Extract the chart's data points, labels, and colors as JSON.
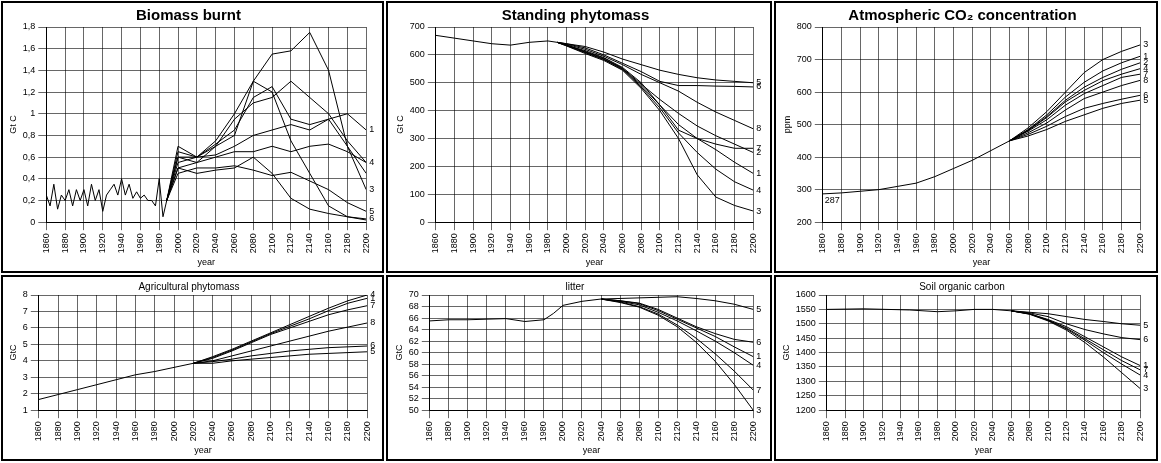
{
  "chart_data": [
    {
      "type": "line",
      "title": "Biomass burnt",
      "xlabel": "year",
      "ylabel": "Gt C",
      "xlim": [
        1860,
        2200
      ],
      "xticks": [
        1860,
        1880,
        1900,
        1920,
        1940,
        1960,
        1980,
        2000,
        2020,
        2040,
        2060,
        2080,
        2100,
        2120,
        2140,
        2160,
        2180,
        2200
      ],
      "ylim": [
        0,
        1.8
      ],
      "yticks": [
        0,
        {
          "value": 0.2,
          "label": "0,2"
        },
        {
          "value": 0.4,
          "label": "0,4"
        },
        {
          "value": 0.6,
          "label": "0,6"
        },
        {
          "value": 0.8,
          "label": "0,8"
        },
        1,
        {
          "value": 1.2,
          "label": "1,2"
        },
        {
          "value": 1.4,
          "label": "1,4"
        },
        {
          "value": 1.6,
          "label": "1,6"
        },
        {
          "value": 1.8,
          "label": "1,8"
        }
      ],
      "grid": true,
      "series": [
        {
          "name": "3",
          "color": "#000000",
          "x": [
            1860,
            1864,
            1868,
            1872,
            1876,
            1880,
            1884,
            1888,
            1892,
            1896,
            1900,
            1904,
            1908,
            1912,
            1916,
            1920,
            1924,
            1928,
            1932,
            1936,
            1940,
            1944,
            1948,
            1952,
            1956,
            1960,
            1964,
            1968,
            1972,
            1976,
            1980,
            1984,
            1988,
            2000,
            2020,
            2040,
            2060,
            2080,
            2100,
            2120,
            2140,
            2160,
            2180,
            2200
          ],
          "values": [
            0.25,
            0.15,
            0.35,
            0.12,
            0.25,
            0.2,
            0.3,
            0.15,
            0.3,
            0.2,
            0.3,
            0.15,
            0.35,
            0.2,
            0.3,
            0.1,
            0.25,
            0.3,
            0.35,
            0.25,
            0.4,
            0.25,
            0.35,
            0.22,
            0.28,
            0.22,
            0.25,
            0.2,
            0.2,
            0.15,
            0.4,
            0.05,
            0.2,
            0.65,
            0.6,
            0.75,
            1.0,
            1.3,
            1.55,
            1.58,
            1.75,
            1.4,
            0.7,
            0.3
          ]
        },
        {
          "name": "4",
          "color": "#000000",
          "x": [
            1988,
            2000,
            2020,
            2040,
            2060,
            2080,
            2100,
            2120,
            2140,
            2160,
            2180,
            2200
          ],
          "values": [
            0.2,
            0.6,
            0.6,
            0.7,
            0.95,
            1.1,
            1.15,
            1.3,
            1.15,
            1.0,
            0.75,
            0.55
          ]
        },
        {
          "name": "1",
          "color": "#000000",
          "x": [
            1988,
            2000,
            2020,
            2040,
            2060,
            2080,
            2100,
            2120,
            2140,
            2160,
            2180,
            2200
          ],
          "values": [
            0.2,
            0.55,
            0.6,
            0.72,
            0.85,
            1.15,
            1.25,
            0.95,
            0.9,
            0.95,
            1.0,
            0.85
          ]
        },
        {
          "color": "#000000",
          "x": [
            1988,
            2000,
            2020,
            2040,
            2060,
            2080,
            2100,
            2120,
            2140,
            2160,
            2180,
            2200
          ],
          "values": [
            0.2,
            0.6,
            0.55,
            0.7,
            0.8,
            1.3,
            1.2,
            0.75,
            0.45,
            0.15,
            0.05,
            0.02
          ]
        },
        {
          "color": "#000000",
          "x": [
            1988,
            2000,
            2020,
            2040,
            2060,
            2080,
            2100,
            2120,
            2140,
            2160,
            2180,
            2200
          ],
          "values": [
            0.2,
            0.7,
            0.6,
            0.62,
            0.7,
            0.8,
            0.85,
            0.9,
            0.85,
            0.95,
            0.7,
            0.45
          ]
        },
        {
          "color": "#000000",
          "x": [
            1988,
            2000,
            2020,
            2040,
            2060,
            2080,
            2100,
            2120,
            2140,
            2160,
            2180,
            2200
          ],
          "values": [
            0.2,
            0.5,
            0.55,
            0.6,
            0.65,
            0.65,
            0.7,
            0.65,
            0.7,
            0.72,
            0.65,
            0.55
          ]
        },
        {
          "name": "5",
          "color": "#000000",
          "x": [
            1988,
            2000,
            2020,
            2040,
            2060,
            2080,
            2100,
            2120,
            2140,
            2160,
            2180,
            2200
          ],
          "values": [
            0.2,
            0.45,
            0.5,
            0.5,
            0.52,
            0.48,
            0.43,
            0.46,
            0.38,
            0.3,
            0.18,
            0.1
          ]
        },
        {
          "name": "6",
          "color": "#000000",
          "x": [
            1988,
            2000,
            2020,
            2040,
            2060,
            2080,
            2100,
            2120,
            2140,
            2160,
            2180,
            2200
          ],
          "values": [
            0.2,
            0.5,
            0.45,
            0.48,
            0.5,
            0.6,
            0.45,
            0.22,
            0.12,
            0.08,
            0.05,
            0.03
          ]
        }
      ]
    },
    {
      "type": "line",
      "title": "Standing phytomass",
      "xlabel": "year",
      "ylabel": "Gt C",
      "xlim": [
        1860,
        2200
      ],
      "xticks": [
        1860,
        1880,
        1900,
        1920,
        1940,
        1960,
        1980,
        2000,
        2020,
        2040,
        2060,
        2080,
        2100,
        2120,
        2140,
        2160,
        2180,
        2200
      ],
      "ylim": [
        0,
        700
      ],
      "yticks": [
        0,
        100,
        200,
        300,
        400,
        500,
        600,
        700
      ],
      "grid": true,
      "series": [
        {
          "name": "5",
          "color": "#000000",
          "x": [
            1860,
            1880,
            1900,
            1920,
            1940,
            1960,
            1980,
            1990,
            2000,
            2020,
            2040,
            2060,
            2080,
            2100,
            2120,
            2140,
            2160,
            2180,
            2200
          ],
          "values": [
            670,
            660,
            650,
            640,
            635,
            645,
            650,
            645,
            640,
            630,
            610,
            585,
            565,
            545,
            530,
            518,
            510,
            505,
            500
          ]
        },
        {
          "name": "6",
          "color": "#000000",
          "x": [
            1990,
            2000,
            2020,
            2040,
            2060,
            2080,
            2100,
            2120,
            2140,
            2160,
            2180,
            2200
          ],
          "values": [
            645,
            640,
            625,
            600,
            570,
            540,
            505,
            490,
            490,
            488,
            487,
            485
          ]
        },
        {
          "name": "8",
          "color": "#000000",
          "x": [
            1990,
            2000,
            2020,
            2040,
            2060,
            2080,
            2100,
            2120,
            2140,
            2160,
            2180,
            2200
          ],
          "values": [
            645,
            638,
            620,
            595,
            565,
            530,
            500,
            470,
            430,
            395,
            365,
            335
          ]
        },
        {
          "name": "7",
          "color": "#000000",
          "x": [
            1990,
            2000,
            2020,
            2040,
            2060,
            2080,
            2100,
            2120,
            2140,
            2160,
            2180,
            2200
          ],
          "values": [
            645,
            635,
            615,
            590,
            555,
            500,
            420,
            330,
            300,
            280,
            265,
            265
          ]
        },
        {
          "name": "2",
          "color": "#000000",
          "x": [
            1990,
            2000,
            2020,
            2040,
            2060,
            2080,
            2100,
            2120,
            2140,
            2160,
            2180,
            2200
          ],
          "values": [
            645,
            635,
            612,
            588,
            552,
            495,
            440,
            390,
            345,
            310,
            280,
            250
          ]
        },
        {
          "name": "1",
          "color": "#000000",
          "x": [
            1990,
            2000,
            2020,
            2040,
            2060,
            2080,
            2100,
            2120,
            2140,
            2160,
            2180,
            2200
          ],
          "values": [
            645,
            635,
            610,
            585,
            550,
            490,
            420,
            350,
            300,
            260,
            215,
            175
          ]
        },
        {
          "name": "4",
          "color": "#000000",
          "x": [
            1990,
            2000,
            2020,
            2040,
            2060,
            2080,
            2100,
            2120,
            2140,
            2160,
            2180,
            2200
          ],
          "values": [
            645,
            633,
            608,
            583,
            548,
            485,
            410,
            320,
            250,
            190,
            145,
            115
          ]
        },
        {
          "name": "3",
          "color": "#000000",
          "x": [
            1990,
            2000,
            2020,
            2040,
            2060,
            2080,
            2100,
            2120,
            2140,
            2160,
            2180,
            2200
          ],
          "values": [
            645,
            632,
            605,
            580,
            545,
            480,
            400,
            300,
            170,
            90,
            60,
            40
          ]
        }
      ]
    },
    {
      "type": "line",
      "title": "Atmospheric CO₂ concentration",
      "xlabel": "year",
      "ylabel": "ppm",
      "xlim": [
        1860,
        2200
      ],
      "xticks": [
        1860,
        1880,
        1900,
        1920,
        1940,
        1960,
        1980,
        2000,
        2020,
        2040,
        2060,
        2080,
        2100,
        2120,
        2140,
        2160,
        2180,
        2200
      ],
      "ylim": [
        200,
        800
      ],
      "yticks": [
        200,
        300,
        400,
        500,
        600,
        700,
        800
      ],
      "grid": true,
      "annotations": [
        {
          "text": "287",
          "x": 1860,
          "y": 287
        }
      ],
      "series": [
        {
          "name": "3",
          "color": "#000000",
          "x": [
            1860,
            1880,
            1900,
            1920,
            1940,
            1960,
            1980,
            2000,
            2020,
            2040,
            2060,
            2080,
            2100,
            2120,
            2140,
            2160,
            2180,
            2200
          ],
          "values": [
            287,
            290,
            295,
            300,
            310,
            320,
            340,
            365,
            390,
            420,
            450,
            490,
            540,
            600,
            660,
            700,
            725,
            745
          ]
        },
        {
          "name": "1",
          "color": "#000000",
          "x": [
            2060,
            2080,
            2100,
            2120,
            2140,
            2160,
            2180,
            2200
          ],
          "values": [
            450,
            485,
            530,
            585,
            630,
            665,
            690,
            710
          ]
        },
        {
          "name": "2",
          "color": "#000000",
          "x": [
            2060,
            2080,
            2100,
            2120,
            2140,
            2160,
            2180,
            2200
          ],
          "values": [
            450,
            483,
            525,
            575,
            615,
            645,
            670,
            690
          ]
        },
        {
          "name": "4",
          "color": "#000000",
          "x": [
            2060,
            2080,
            2100,
            2120,
            2140,
            2160,
            2180,
            2200
          ],
          "values": [
            450,
            482,
            522,
            570,
            605,
            635,
            655,
            672
          ]
        },
        {
          "name": "7",
          "color": "#000000",
          "x": [
            2060,
            2080,
            2100,
            2120,
            2140,
            2160,
            2180,
            2200
          ],
          "values": [
            450,
            480,
            515,
            560,
            595,
            620,
            645,
            655
          ]
        },
        {
          "name": "8",
          "color": "#000000",
          "x": [
            2060,
            2080,
            2100,
            2120,
            2140,
            2160,
            2180,
            2200
          ],
          "values": [
            450,
            475,
            505,
            545,
            580,
            600,
            620,
            636
          ]
        },
        {
          "name": "6",
          "color": "#000000",
          "x": [
            2060,
            2080,
            2100,
            2120,
            2140,
            2160,
            2180,
            2200
          ],
          "values": [
            450,
            470,
            495,
            525,
            550,
            565,
            578,
            590
          ]
        },
        {
          "name": "5",
          "color": "#000000",
          "x": [
            2060,
            2080,
            2100,
            2120,
            2140,
            2160,
            2180,
            2200
          ],
          "values": [
            450,
            465,
            485,
            510,
            530,
            550,
            565,
            575
          ]
        }
      ]
    },
    {
      "type": "line",
      "title": "Agricultural phytomass",
      "xlabel": "year",
      "ylabel": "GtC",
      "xlim": [
        1860,
        2200
      ],
      "xticks": [
        1860,
        1880,
        1900,
        1920,
        1940,
        1960,
        1980,
        2000,
        2020,
        2040,
        2060,
        2080,
        2100,
        2120,
        2140,
        2160,
        2180,
        2200
      ],
      "ylim": [
        1,
        8
      ],
      "yticks": [
        1,
        2,
        3,
        4,
        5,
        6,
        7,
        8
      ],
      "grid": true,
      "series": [
        {
          "name": "4",
          "color": "#000000",
          "x": [
            1860,
            1880,
            1900,
            1920,
            1940,
            1960,
            1980,
            2000,
            2020,
            2040,
            2060,
            2080,
            2100,
            2120,
            2140,
            2160,
            2180,
            2200
          ],
          "values": [
            1.65,
            1.95,
            2.25,
            2.55,
            2.85,
            3.15,
            3.35,
            3.6,
            3.85,
            4.25,
            4.7,
            5.2,
            5.7,
            6.2,
            6.7,
            7.2,
            7.65,
            8
          ]
        },
        {
          "name": "1",
          "color": "#000000",
          "x": [
            2020,
            2040,
            2060,
            2080,
            2100,
            2120,
            2140,
            2160,
            2180,
            2200
          ],
          "values": [
            3.85,
            4.2,
            4.65,
            5.15,
            5.65,
            6.1,
            6.55,
            7.05,
            7.5,
            7.8
          ]
        },
        {
          "name": "7",
          "color": "#000000",
          "x": [
            2020,
            2040,
            2060,
            2080,
            2100,
            2120,
            2140,
            2160,
            2180,
            2200
          ],
          "values": [
            3.85,
            4.15,
            4.6,
            5.1,
            5.6,
            6.0,
            6.4,
            6.8,
            7.1,
            7.35
          ]
        },
        {
          "name": "8",
          "color": "#000000",
          "x": [
            2020,
            2040,
            2060,
            2080,
            2100,
            2120,
            2140,
            2160,
            2180,
            2200
          ],
          "values": [
            3.85,
            4.0,
            4.3,
            4.6,
            4.9,
            5.2,
            5.5,
            5.8,
            6.05,
            6.3
          ]
        },
        {
          "name": "6",
          "color": "#000000",
          "x": [
            2020,
            2040,
            2060,
            2080,
            2100,
            2120,
            2140,
            2160,
            2180,
            2200
          ],
          "values": [
            3.85,
            3.95,
            4.1,
            4.3,
            4.45,
            4.6,
            4.7,
            4.8,
            4.85,
            4.9
          ]
        },
        {
          "name": "5",
          "color": "#000000",
          "x": [
            2020,
            2040,
            2060,
            2080,
            2100,
            2120,
            2140,
            2160,
            2180,
            2200
          ],
          "values": [
            3.85,
            3.85,
            4.0,
            4.1,
            4.2,
            4.3,
            4.4,
            4.45,
            4.5,
            4.55
          ]
        }
      ]
    },
    {
      "type": "line",
      "title": "litter",
      "xlabel": "year",
      "ylabel": "GtC",
      "xlim": [
        1860,
        2200
      ],
      "xticks": [
        1860,
        1880,
        1900,
        1920,
        1940,
        1960,
        1980,
        2000,
        2020,
        2040,
        2060,
        2080,
        2100,
        2120,
        2140,
        2160,
        2180,
        2200
      ],
      "ylim": [
        50,
        70
      ],
      "yticks": [
        50,
        52,
        54,
        56,
        58,
        60,
        62,
        64,
        66,
        68,
        70
      ],
      "grid": true,
      "series": [
        {
          "name": "5",
          "color": "#000000",
          "x": [
            1860,
            1880,
            1900,
            1920,
            1940,
            1960,
            1980,
            1990,
            2000,
            2020,
            2040,
            2060,
            2080,
            2100,
            2120,
            2140,
            2160,
            2180,
            2200
          ],
          "values": [
            65.5,
            65.7,
            65.7,
            65.8,
            65.9,
            65.4,
            65.7,
            66.8,
            68.2,
            68.9,
            69.3,
            69.4,
            69.5,
            69.6,
            69.7,
            69.4,
            69.0,
            68.4,
            67.5
          ]
        },
        {
          "name": "6",
          "color": "#000000",
          "x": [
            2040,
            2060,
            2080,
            2100,
            2120,
            2140,
            2160,
            2180,
            2200
          ],
          "values": [
            69.3,
            69.0,
            68.6,
            67.5,
            66.0,
            64.5,
            63.3,
            62.3,
            61.8
          ]
        },
        {
          "name": "1",
          "color": "#000000",
          "x": [
            2040,
            2060,
            2080,
            2100,
            2120,
            2140,
            2160,
            2180,
            2200
          ],
          "values": [
            69.3,
            69.0,
            68.5,
            67.3,
            65.8,
            64.3,
            62.8,
            61.0,
            59.3
          ]
        },
        {
          "name": "4",
          "color": "#000000",
          "x": [
            2040,
            2060,
            2080,
            2100,
            2120,
            2140,
            2160,
            2180,
            2200
          ],
          "values": [
            69.3,
            68.9,
            68.3,
            67.0,
            65.5,
            63.8,
            62.0,
            60.0,
            57.8
          ]
        },
        {
          "name": "7",
          "color": "#000000",
          "x": [
            2040,
            2060,
            2080,
            2100,
            2120,
            2140,
            2160,
            2180,
            2200
          ],
          "values": [
            69.3,
            68.8,
            68.0,
            66.7,
            64.8,
            62.5,
            59.8,
            56.8,
            53.5
          ]
        },
        {
          "name": "3",
          "color": "#000000",
          "x": [
            2040,
            2060,
            2080,
            2100,
            2120,
            2140,
            2160,
            2180,
            2200
          ],
          "values": [
            69.3,
            68.7,
            67.9,
            66.5,
            64.5,
            61.8,
            58.5,
            54.5,
            50
          ]
        }
      ]
    },
    {
      "type": "line",
      "title": "Soil organic carbon",
      "xlabel": "year",
      "ylabel": "GtC",
      "xlim": [
        1860,
        2200
      ],
      "xticks": [
        1860,
        1880,
        1900,
        1920,
        1940,
        1960,
        1980,
        2000,
        2020,
        2040,
        2060,
        2080,
        2100,
        2120,
        2140,
        2160,
        2180,
        2200
      ],
      "ylim": [
        1200,
        1600
      ],
      "yticks": [
        1200,
        1250,
        1300,
        1350,
        1400,
        1450,
        1500,
        1550,
        1600
      ],
      "grid": true,
      "series": [
        {
          "name": "5",
          "color": "#000000",
          "x": [
            1860,
            1900,
            1950,
            1980,
            2000,
            2020,
            2040,
            2060,
            2080,
            2100,
            2120,
            2140,
            2160,
            2180,
            2200
          ],
          "values": [
            1550,
            1552,
            1548,
            1542,
            1545,
            1550,
            1550,
            1545,
            1540,
            1535,
            1525,
            1515,
            1508,
            1500,
            1495
          ]
        },
        {
          "name": "6",
          "color": "#000000",
          "x": [
            2060,
            2080,
            2100,
            2120,
            2140,
            2160,
            2180,
            2200
          ],
          "values": [
            1545,
            1538,
            1525,
            1500,
            1480,
            1465,
            1452,
            1445
          ]
        },
        {
          "name": "1",
          "color": "#000000",
          "x": [
            2060,
            2080,
            2100,
            2120,
            2140,
            2160,
            2180,
            2200
          ],
          "values": [
            1545,
            1535,
            1515,
            1490,
            1455,
            1420,
            1385,
            1355
          ]
        },
        {
          "name": "7",
          "color": "#000000",
          "x": [
            2060,
            2080,
            2100,
            2120,
            2140,
            2160,
            2180,
            2200
          ],
          "values": [
            1545,
            1535,
            1513,
            1485,
            1448,
            1410,
            1372,
            1340
          ]
        },
        {
          "name": "4",
          "color": "#000000",
          "x": [
            2060,
            2080,
            2100,
            2120,
            2140,
            2160,
            2180,
            2200
          ],
          "values": [
            1545,
            1534,
            1512,
            1482,
            1443,
            1400,
            1360,
            1322
          ]
        },
        {
          "name": "3",
          "color": "#000000",
          "x": [
            2060,
            2080,
            2100,
            2120,
            2140,
            2160,
            2180,
            2200
          ],
          "values": [
            1545,
            1533,
            1510,
            1478,
            1435,
            1385,
            1330,
            1275
          ]
        }
      ]
    }
  ]
}
